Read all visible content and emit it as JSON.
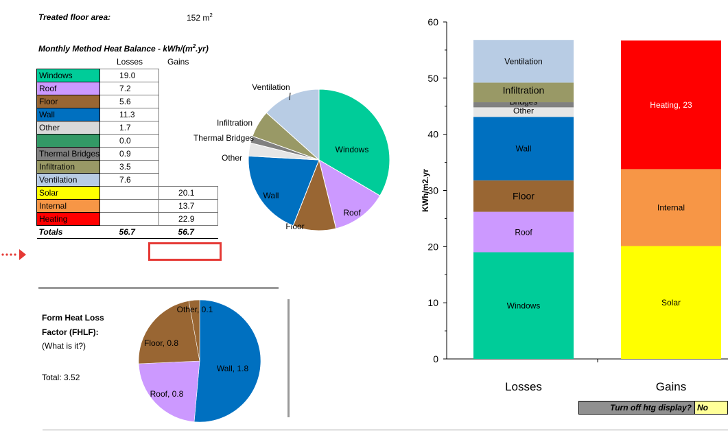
{
  "treated_floor_area": {
    "label": "Treated floor area:",
    "value": "152",
    "unit": "m",
    "unit_sup": "2"
  },
  "heat_balance": {
    "title_prefix": "Monthly Method Heat Balance - kWh/(m",
    "title_sup": "2",
    "title_suffix": ".yr)",
    "col_losses": "Losses",
    "col_gains": "Gains",
    "rows": [
      {
        "name": "Windows",
        "color": "#00CC99",
        "loss": "19.0",
        "gain": ""
      },
      {
        "name": "Roof",
        "color": "#CC99FF",
        "loss": "7.2",
        "gain": ""
      },
      {
        "name": "Floor",
        "color": "#996633",
        "loss": "5.6",
        "gain": ""
      },
      {
        "name": "Wall",
        "color": "#0070C0",
        "loss": "11.3",
        "gain": ""
      },
      {
        "name": "Other",
        "color": "#D9D9D9",
        "loss": "1.7",
        "gain": ""
      },
      {
        "name": "",
        "color": "#339966",
        "loss": "0.0",
        "gain": ""
      },
      {
        "name": "Thermal Bridges",
        "color": "#808080",
        "loss": "0.9",
        "gain": ""
      },
      {
        "name": "Infiltration",
        "color": "#999966",
        "loss": "3.5",
        "gain": ""
      },
      {
        "name": "Ventilation",
        "color": "#B8CCE4",
        "loss": "7.6",
        "gain": ""
      },
      {
        "name": "Solar",
        "color": "#FFFF00",
        "loss": "",
        "gain": "20.1"
      },
      {
        "name": "Internal",
        "color": "#F79646",
        "loss": "",
        "gain": "13.7"
      },
      {
        "name": "Heating",
        "color": "#FF0000",
        "loss": "",
        "gain": "22.9"
      }
    ],
    "totals": {
      "label": "Totals",
      "losses": "56.7",
      "gains": "56.7"
    }
  },
  "fhlf": {
    "title_line1": "Form Heat Loss",
    "title_line2": "Factor (FHLF):",
    "link": "(What is it?)",
    "total": "Total: 3.52"
  },
  "toggle": {
    "label": "Turn off htg display?",
    "value": "No"
  },
  "chart_data": [
    {
      "type": "pie",
      "title": "",
      "slices": [
        {
          "label": "Windows",
          "value": 19.0,
          "color": "#00CC99"
        },
        {
          "label": "Roof",
          "value": 7.2,
          "color": "#CC99FF"
        },
        {
          "label": "Floor",
          "value": 5.6,
          "color": "#996633"
        },
        {
          "label": "Wall",
          "value": 11.3,
          "color": "#0070C0"
        },
        {
          "label": "Other",
          "value": 1.7,
          "color": "#E6E6E6"
        },
        {
          "label": "Thermal Bridges",
          "value": 0.9,
          "color": "#808080"
        },
        {
          "label": "Infiltration",
          "value": 3.5,
          "color": "#999966"
        },
        {
          "label": "Ventilation",
          "value": 7.6,
          "color": "#B8CCE4"
        }
      ]
    },
    {
      "type": "pie",
      "title": "",
      "slices": [
        {
          "label": "Wall, 1.8",
          "value": 1.8,
          "color": "#0070C0"
        },
        {
          "label": "Roof, 0.8",
          "value": 0.8,
          "color": "#CC99FF"
        },
        {
          "label": "Floor, 0.8",
          "value": 0.8,
          "color": "#996633"
        },
        {
          "label": "Other, 0.1",
          "value": 0.1,
          "color": "#996633"
        }
      ]
    },
    {
      "type": "bar",
      "stacked": true,
      "categories": [
        "Losses",
        "Gains"
      ],
      "ylabel": "KWh/m2.yr",
      "ylim": [
        0,
        60
      ],
      "yticks": [
        0,
        10,
        20,
        30,
        40,
        50,
        60
      ],
      "grid": false,
      "series": [
        {
          "name": "Windows",
          "values": [
            19.0,
            0
          ],
          "color": "#00CC99",
          "label": "Windows"
        },
        {
          "name": "Roof",
          "values": [
            7.2,
            0
          ],
          "color": "#CC99FF",
          "label": "Roof"
        },
        {
          "name": "Floor",
          "values": [
            5.6,
            0
          ],
          "color": "#996633",
          "label": "Floor"
        },
        {
          "name": "Wall",
          "values": [
            11.3,
            0
          ],
          "color": "#0070C0",
          "label": "Wall"
        },
        {
          "name": "Other",
          "values": [
            1.7,
            0
          ],
          "color": "#E6E6E6",
          "label": "Other"
        },
        {
          "name": "Thermal Bridges",
          "values": [
            0.9,
            0
          ],
          "color": "#808080",
          "label": "Thermal Bridges"
        },
        {
          "name": "Infiltration",
          "values": [
            3.5,
            0
          ],
          "color": "#999966",
          "label": "Infiltration"
        },
        {
          "name": "Ventilation",
          "values": [
            7.6,
            0
          ],
          "color": "#B8CCE4",
          "label": "Ventilation"
        },
        {
          "name": "Solar",
          "values": [
            0,
            20.1
          ],
          "color": "#FFFF00",
          "label": "Solar"
        },
        {
          "name": "Internal",
          "values": [
            0,
            13.7
          ],
          "color": "#F79646",
          "label": "Internal"
        },
        {
          "name": "Heating",
          "values": [
            0,
            22.9
          ],
          "color": "#FF0000",
          "label": "Heating, 23"
        }
      ]
    }
  ]
}
